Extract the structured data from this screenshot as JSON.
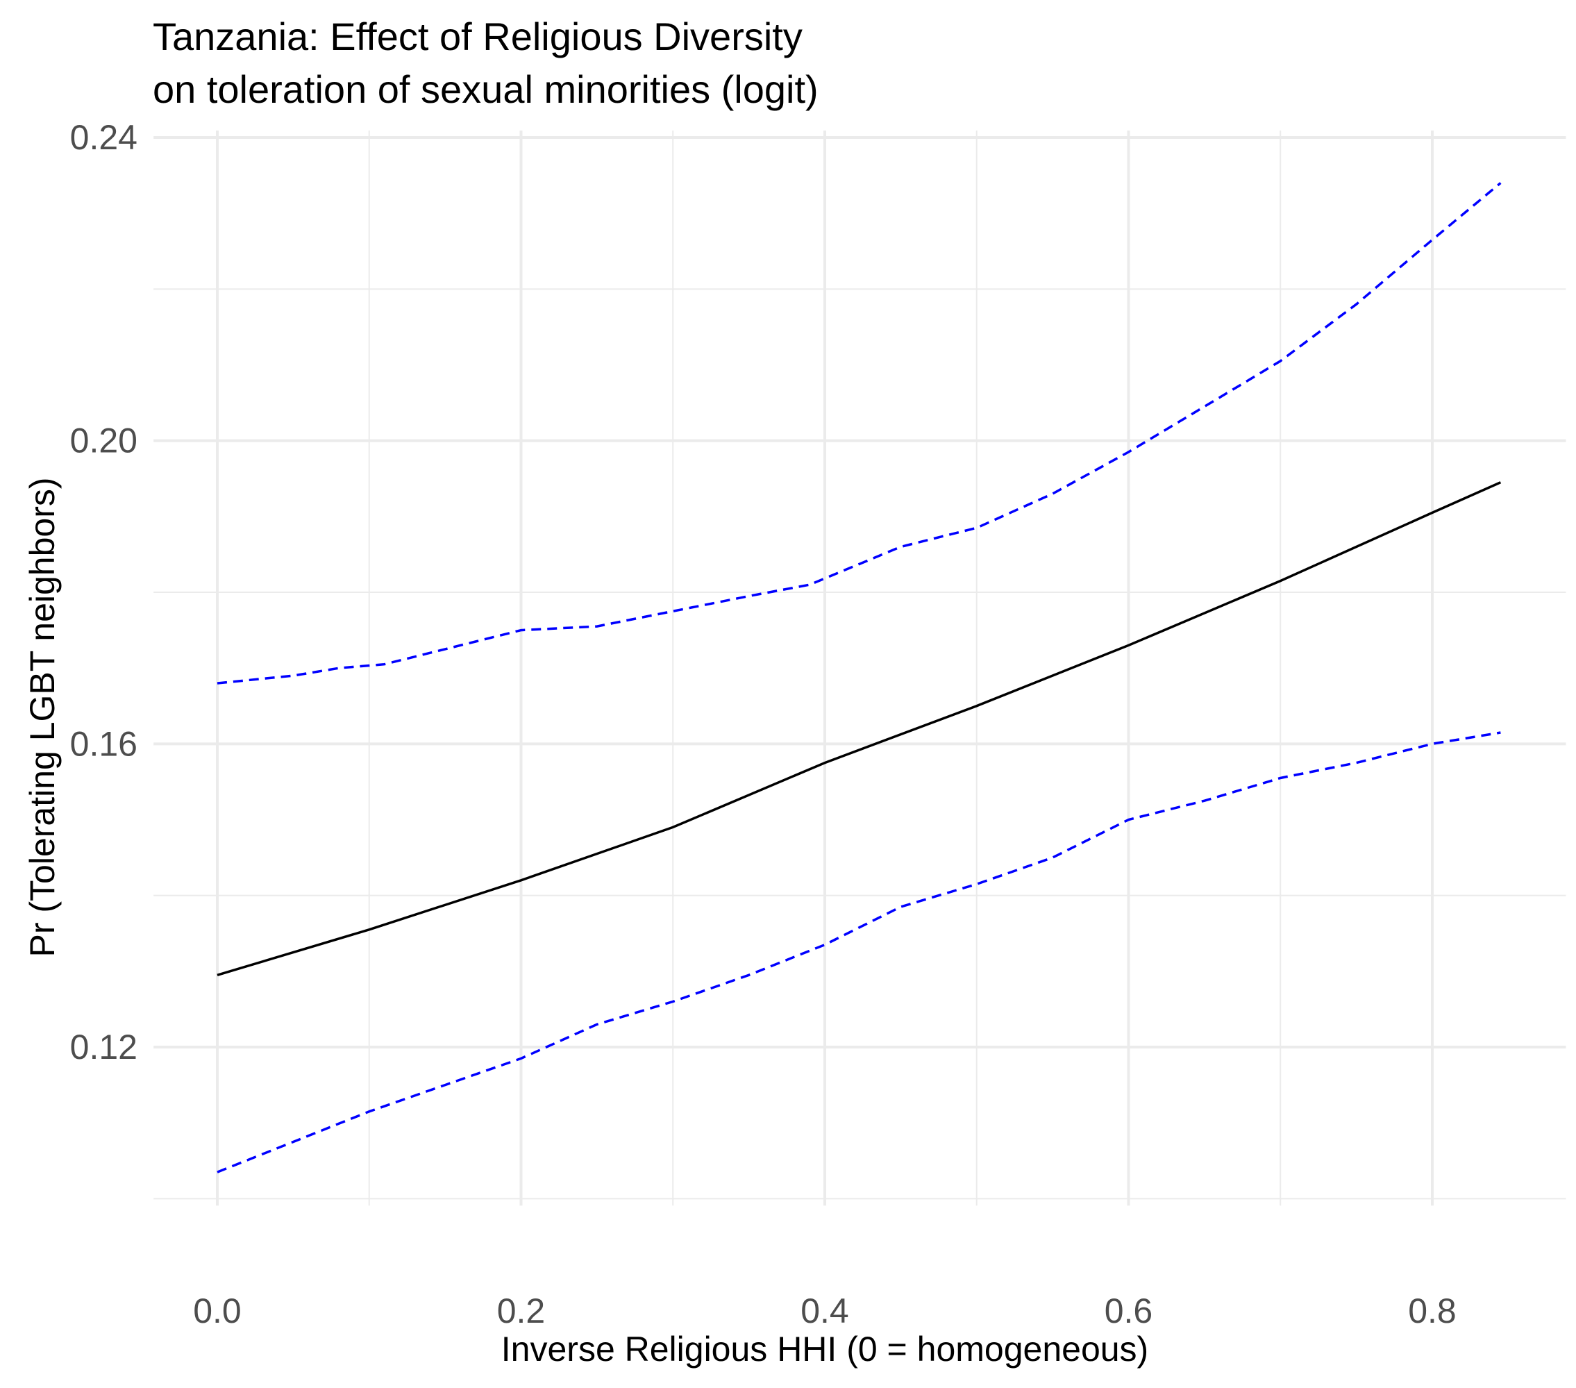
{
  "chart_data": {
    "type": "line",
    "title": "Tanzania: Effect of Religious Diversity",
    "subtitle": "on toleration of sexual minorities (logit)",
    "xlabel": "Inverse Religious HHI (0 = homogeneous)",
    "ylabel": "Pr (Tolerating LGBT neighbors)",
    "xlim": [
      -0.042,
      0.888
    ],
    "ylim": [
      0.1,
      0.24
    ],
    "x_ticks": [
      0.0,
      0.2,
      0.4,
      0.6,
      0.8
    ],
    "x_tick_labels": [
      "0.0",
      "0.2",
      "0.4",
      "0.6",
      "0.8"
    ],
    "y_ticks": [
      0.12,
      0.16,
      0.2,
      0.24
    ],
    "y_tick_labels": [
      "0.12",
      "0.16",
      "0.20",
      "0.24"
    ],
    "grid": true,
    "colors": {
      "estimate": "#000000",
      "ci": "#0000ff",
      "grid": "#ebebeb"
    },
    "series": [
      {
        "role": "estimate",
        "style": "solid",
        "x": [
          0.0,
          0.1,
          0.2,
          0.3,
          0.4,
          0.5,
          0.6,
          0.7,
          0.8,
          0.845
        ],
        "y": [
          0.1295,
          0.1355,
          0.142,
          0.149,
          0.1575,
          0.165,
          0.173,
          0.1815,
          0.1905,
          0.1945
        ]
      },
      {
        "role": "upper-ci",
        "style": "dashed",
        "x": [
          0.0,
          0.05,
          0.08,
          0.11,
          0.15,
          0.17,
          0.2,
          0.25,
          0.3,
          0.35,
          0.39,
          0.42,
          0.45,
          0.5,
          0.55,
          0.6,
          0.65,
          0.7,
          0.75,
          0.8,
          0.845
        ],
        "y": [
          0.168,
          0.169,
          0.17,
          0.1705,
          0.1725,
          0.1735,
          0.175,
          0.1755,
          0.1775,
          0.1795,
          0.181,
          0.1835,
          0.186,
          0.1885,
          0.193,
          0.1985,
          0.2045,
          0.2105,
          0.218,
          0.2265,
          0.234
        ]
      },
      {
        "role": "lower-ci",
        "style": "dashed",
        "x": [
          0.0,
          0.05,
          0.1,
          0.15,
          0.2,
          0.25,
          0.3,
          0.35,
          0.4,
          0.45,
          0.5,
          0.55,
          0.6,
          0.65,
          0.7,
          0.75,
          0.8,
          0.845
        ],
        "y": [
          0.1035,
          0.1075,
          0.1115,
          0.115,
          0.1185,
          0.123,
          0.126,
          0.1295,
          0.1335,
          0.1385,
          0.1415,
          0.145,
          0.15,
          0.1525,
          0.1555,
          0.1575,
          0.16,
          0.1615
        ]
      }
    ]
  }
}
